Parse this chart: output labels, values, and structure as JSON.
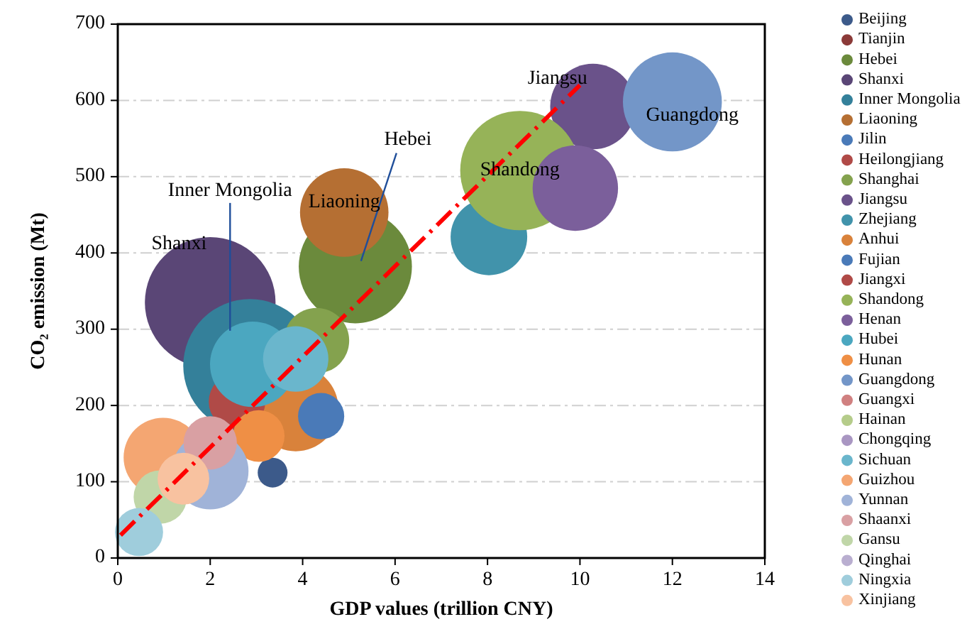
{
  "chart_data": {
    "type": "bubble",
    "xlabel": "GDP values (trillion CNY)",
    "ylabel": "CO₂ emission (Mt)",
    "xlim": [
      0,
      14
    ],
    "xticks": [
      0,
      2,
      4,
      6,
      8,
      10,
      12,
      14
    ],
    "ylim": [
      0,
      700
    ],
    "yticks": [
      0,
      100,
      200,
      300,
      400,
      500,
      600,
      700
    ],
    "grid": "y",
    "legend": "right",
    "marker": "circle",
    "series": [
      {
        "name": "Beijing",
        "color": "#3c5a8a",
        "x": [
          3.35
        ],
        "values": [
          112
        ],
        "sizes": [
          0.05
        ]
      },
      {
        "name": "Tianjin",
        "color": "#8b3a38",
        "x": [
          null
        ],
        "values": [
          null
        ],
        "sizes": [
          null
        ]
      },
      {
        "name": "Hebei",
        "color": "#6b8a3c",
        "x": [
          5.14
        ],
        "values": [
          382
        ],
        "sizes": [
          0.72
        ]
      },
      {
        "name": "Shanxi",
        "color": "#5a4676",
        "x": [
          2.0
        ],
        "values": [
          335
        ],
        "sizes": [
          0.96
        ]
      },
      {
        "name": "Inner Mongolia",
        "color": "#34809a",
        "x": [
          2.86
        ],
        "values": [
          252
        ],
        "sizes": [
          1
        ]
      },
      {
        "name": "Liaoning",
        "color": "#b56f33",
        "x": [
          4.9
        ],
        "values": [
          453
        ],
        "sizes": [
          0.44
        ]
      },
      {
        "name": "Jilin",
        "color": "#4a7ab8",
        "x": [
          null
        ],
        "values": [
          null
        ],
        "sizes": [
          null
        ]
      },
      {
        "name": "Heilongjiang",
        "color": "#b04a47",
        "x": [
          null
        ],
        "values": [
          null
        ],
        "sizes": [
          null
        ]
      },
      {
        "name": "Shanghai",
        "color": "#84a24e",
        "x": [
          4.3
        ],
        "values": [
          285
        ],
        "sizes": [
          0.24
        ]
      },
      {
        "name": "Jiangsu",
        "color": "#6a528a",
        "x": [
          10.28
        ],
        "values": [
          592
        ],
        "sizes": [
          0.41
        ]
      },
      {
        "name": "Zhejiang",
        "color": "#4193ab",
        "x": [
          8.03
        ],
        "values": [
          421
        ],
        "sizes": [
          0.33
        ]
      },
      {
        "name": "Anhui",
        "color": "#d9823b",
        "x": [
          3.85
        ],
        "values": [
          196
        ],
        "sizes": [
          0.41
        ]
      },
      {
        "name": "Fujian",
        "color": "#4a7ab8",
        "x": [
          4.4
        ],
        "values": [
          186
        ],
        "sizes": [
          0.12
        ]
      },
      {
        "name": "Jiangxi",
        "color": "#b04a47",
        "x": [
          2.58
        ],
        "values": [
          205
        ],
        "sizes": [
          0.18
        ]
      },
      {
        "name": "Shandong",
        "color": "#96b358",
        "x": [
          8.7
        ],
        "values": [
          508
        ],
        "sizes": [
          0.8
        ]
      },
      {
        "name": "Henan",
        "color": "#7b5f9b",
        "x": [
          9.9
        ],
        "values": [
          485
        ],
        "sizes": [
          0.41
        ]
      },
      {
        "name": "Hubei",
        "color": "#4ba7c0",
        "x": [
          2.92
        ],
        "values": [
          254
        ],
        "sizes": [
          0.41
        ]
      },
      {
        "name": "Hunan",
        "color": "#ef8f45",
        "x": [
          3.05
        ],
        "values": [
          160
        ],
        "sizes": [
          0.15
        ]
      },
      {
        "name": "Guangdong",
        "color": "#7396c8",
        "x": [
          12.0
        ],
        "values": [
          598
        ],
        "sizes": [
          0.55
        ]
      },
      {
        "name": "Guangxi",
        "color": "#d08080",
        "x": [
          null
        ],
        "values": [
          null
        ],
        "sizes": [
          null
        ]
      },
      {
        "name": "Hainan",
        "color": "#b5cc8a",
        "x": [
          null
        ],
        "values": [
          null
        ],
        "sizes": [
          null
        ]
      },
      {
        "name": "Chongqing",
        "color": "#a996c2",
        "x": [
          null
        ],
        "values": [
          null
        ],
        "sizes": [
          null
        ]
      },
      {
        "name": "Sichuan",
        "color": "#6ab6cc",
        "x": [
          3.85
        ],
        "values": [
          261
        ],
        "sizes": [
          0.24
        ]
      },
      {
        "name": "Guizhou",
        "color": "#f4a672",
        "x": [
          0.98
        ],
        "values": [
          132
        ],
        "sizes": [
          0.35
        ]
      },
      {
        "name": "Yunnan",
        "color": "#a0b3d8",
        "x": [
          2.0
        ],
        "values": [
          114
        ],
        "sizes": [
          0.33
        ]
      },
      {
        "name": "Shaanxi",
        "color": "#d9a0a3",
        "x": [
          2.0
        ],
        "values": [
          151
        ],
        "sizes": [
          0.16
        ]
      },
      {
        "name": "Gansu",
        "color": "#c0d6a8",
        "x": [
          0.92
        ],
        "values": [
          80
        ],
        "sizes": [
          0.16
        ]
      },
      {
        "name": "Qinghai",
        "color": "#b9aed0",
        "x": [
          null
        ],
        "values": [
          null
        ],
        "sizes": [
          null
        ]
      },
      {
        "name": "Ningxia",
        "color": "#9fcddc",
        "x": [
          0.46
        ],
        "values": [
          34
        ],
        "sizes": [
          0.13
        ]
      },
      {
        "name": "Xinjiang",
        "color": "#f8c2a0",
        "x": [
          1.42
        ],
        "values": [
          104
        ],
        "sizes": [
          0.15
        ]
      },
      {
        "type": "line",
        "color": "#ff0000",
        "line_style": "dashed",
        "marker": "none",
        "x": [
          0.06,
          10.0
        ],
        "values": [
          30,
          620
        ]
      }
    ],
    "annotations": [
      {
        "text": "Shanxi",
        "x": 2.0,
        "y": 335
      },
      {
        "text": "Inner Mongolia",
        "x": 2.43,
        "y": 298
      },
      {
        "text": "Hebei",
        "x": 5.14,
        "y": 382
      },
      {
        "text": "Liaoning",
        "x": 4.9,
        "y": 453
      },
      {
        "text": "Shandong",
        "x": 8.7,
        "y": 508
      },
      {
        "text": "Jiangsu",
        "x": 10.28,
        "y": 592
      },
      {
        "text": "Guangdong",
        "x": 12.0,
        "y": 598
      }
    ]
  }
}
